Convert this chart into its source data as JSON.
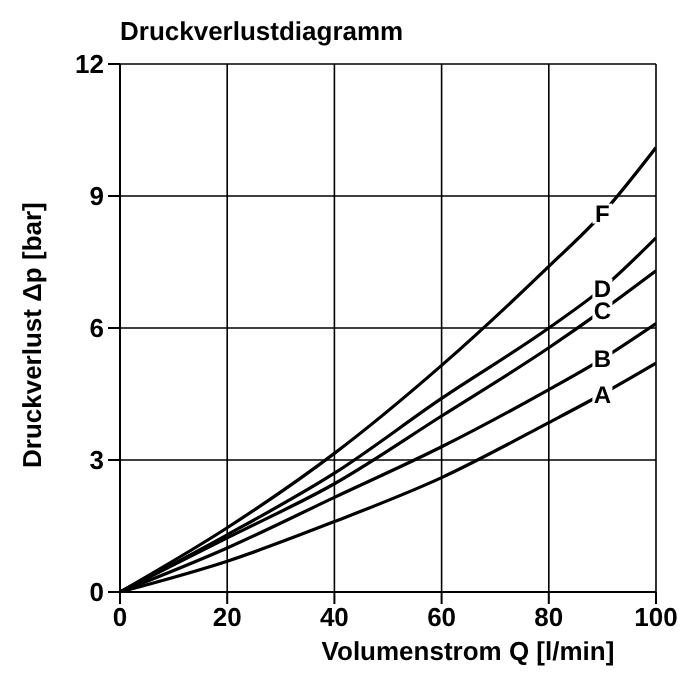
{
  "chart_data": {
    "type": "line",
    "title": "Druckverlustdiagramm",
    "xlabel": "Volumenstrom Q [l/min]",
    "ylabel": "Druckverlust Δp [bar]",
    "x": [
      0,
      20,
      40,
      60,
      80,
      90,
      100
    ],
    "series": [
      {
        "name": "A",
        "color": "#000000",
        "values": [
          0,
          0.7,
          1.6,
          2.6,
          3.85,
          4.5,
          5.2
        ]
      },
      {
        "name": "B",
        "color": "#000000",
        "values": [
          0,
          1.0,
          2.15,
          3.3,
          4.6,
          5.3,
          6.1
        ]
      },
      {
        "name": "C",
        "color": "#000000",
        "values": [
          0,
          1.23,
          2.46,
          4.0,
          5.55,
          6.4,
          7.3
        ]
      },
      {
        "name": "D",
        "color": "#000000",
        "values": [
          0,
          1.3,
          2.7,
          4.4,
          6.0,
          6.9,
          8.05
        ]
      },
      {
        "name": "F",
        "color": "#000000",
        "values": [
          0,
          1.46,
          3.15,
          5.15,
          7.4,
          8.6,
          10.1
        ]
      }
    ],
    "xlim": [
      0,
      100
    ],
    "xticks": [
      0,
      20,
      40,
      60,
      80,
      100
    ],
    "ylim": [
      0,
      12
    ],
    "yticks": [
      0,
      3,
      6,
      9,
      12
    ],
    "grid": true,
    "legend": false,
    "marker": "none",
    "line_style": "solid"
  }
}
